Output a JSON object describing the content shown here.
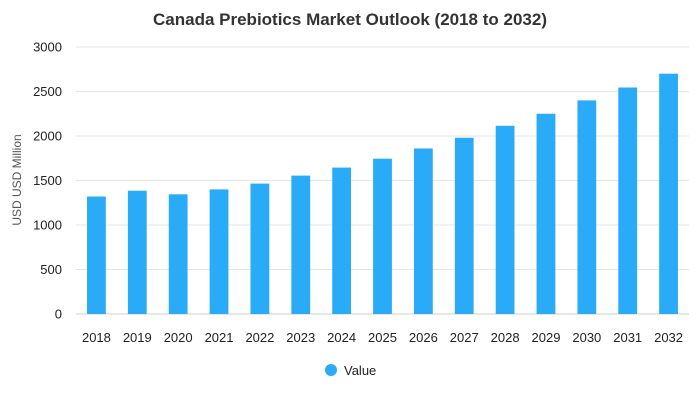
{
  "colors": {
    "bar": "#2aabf7",
    "grid": "#e6e6e6",
    "text": "#222222",
    "title": "#333333"
  },
  "chart_data": {
    "type": "bar",
    "title": "Canada Prebiotics Market Outlook (2018 to 2032)",
    "xlabel": "",
    "ylabel": "USD USD Million",
    "categories": [
      "2018",
      "2019",
      "2020",
      "2021",
      "2022",
      "2023",
      "2024",
      "2025",
      "2026",
      "2027",
      "2028",
      "2029",
      "2030",
      "2031",
      "2032"
    ],
    "series": [
      {
        "name": "Value",
        "values": [
          1320,
          1385,
          1345,
          1400,
          1465,
          1555,
          1645,
          1745,
          1860,
          1980,
          2115,
          2250,
          2400,
          2545,
          2700
        ]
      }
    ],
    "ylim": [
      0,
      3000
    ],
    "yticks": [
      0,
      500,
      1000,
      1500,
      2000,
      2500,
      3000
    ],
    "grid": true,
    "legend_position": "bottom-center"
  }
}
